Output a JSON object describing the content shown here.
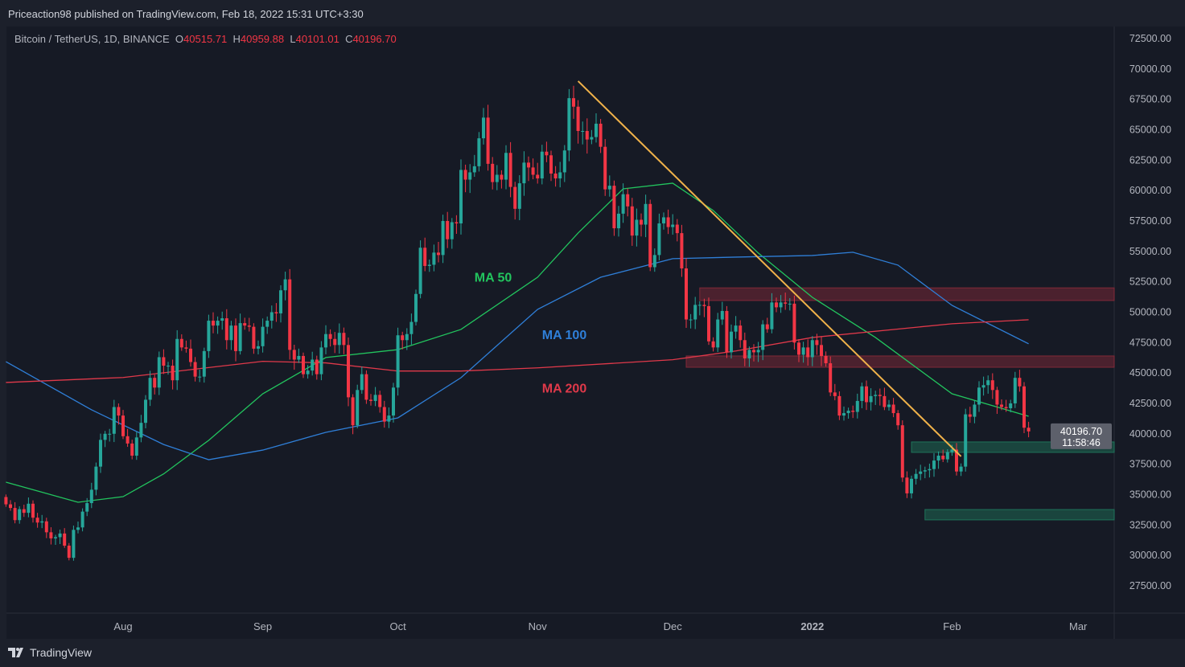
{
  "header": {
    "published": "Priceaction98 published on TradingView.com, Feb 18, 2022 15:31 UTC+3:30"
  },
  "legend": {
    "symbol": "Bitcoin / TetherUS, 1D, BINANCE",
    "o_label": "O",
    "o": "40515.71",
    "h_label": "H",
    "h": "40959.88",
    "l_label": "L",
    "l": "40101.01",
    "c_label": "C",
    "c": "40196.70"
  },
  "price_label": {
    "price": "40196.70",
    "countdown": "11:58:46"
  },
  "brand": {
    "name": "TradingView",
    "icon": "tradingview-logo-icon"
  },
  "colors": {
    "up": "#26a69a",
    "down": "#f23645",
    "ma50": "#22c55e",
    "ma100": "#2f7fd8",
    "ma200": "#e0394a",
    "trendline": "#f0b24a",
    "resistance": "#8b2a3a",
    "support": "#1f7a5e"
  },
  "chart_data": {
    "type": "candlestick",
    "yticks": [
      72500,
      70000,
      67500,
      65000,
      62500,
      60000,
      57500,
      55000,
      52500,
      50000,
      47500,
      45000,
      42500,
      40000,
      37500,
      35000,
      32500,
      30000,
      27500
    ],
    "ylim": [
      25000,
      73500
    ],
    "xticks": [
      {
        "label": "Aug",
        "date": "2021-08-01"
      },
      {
        "label": "Sep",
        "date": "2021-09-01"
      },
      {
        "label": "Oct",
        "date": "2021-10-01"
      },
      {
        "label": "Nov",
        "date": "2021-11-01"
      },
      {
        "label": "Dec",
        "date": "2021-12-01"
      },
      {
        "label": "2022",
        "date": "2022-01-01"
      },
      {
        "label": "Feb",
        "date": "2022-02-01"
      },
      {
        "label": "Mar",
        "date": "2022-03-01"
      }
    ],
    "start_date": "2021-07-06",
    "closes": [
      34200,
      33900,
      32900,
      33800,
      33500,
      34250,
      33100,
      32700,
      32800,
      31900,
      31400,
      31500,
      31800,
      30800,
      29800,
      32100,
      32300,
      33600,
      34300,
      35400,
      37300,
      39500,
      40000,
      40000,
      42200,
      41500,
      39800,
      39200,
      38200,
      39700,
      40900,
      42800,
      44600,
      43800,
      46300,
      45600,
      45600,
      44400,
      47800,
      47100,
      47000,
      45900,
      44700,
      44700,
      46800,
      49300,
      48900,
      49300,
      49500,
      47700,
      48900,
      46800,
      49100,
      48900,
      48800,
      47000,
      47200,
      48800,
      49300,
      50000,
      49900,
      51800,
      52700,
      46900,
      46100,
      46400,
      44900,
      45200,
      46100,
      44900,
      47100,
      48200,
      47800,
      47300,
      48300,
      47300,
      43000,
      40700,
      43600,
      44900,
      42800,
      42700,
      43200,
      42200,
      41000,
      41500,
      43800,
      48100,
      47700,
      48200,
      49200,
      51500,
      55300,
      53800,
      53900,
      54900,
      54700,
      57500,
      56000,
      57400,
      57300,
      61700,
      60900,
      61500,
      62000,
      64300,
      66000,
      62200,
      60700,
      61300,
      60900,
      63100,
      60300,
      58500,
      60600,
      62300,
      61900,
      61300,
      61000,
      63200,
      62900,
      61400,
      61000,
      61500,
      63300,
      67600,
      66900,
      64900,
      64900,
      64200,
      64400,
      65500,
      63600,
      60100,
      60400,
      56900,
      58100,
      59700,
      58700,
      56300,
      57600,
      57200,
      58900,
      53700,
      54700,
      57300,
      57800,
      57000,
      57200,
      56500,
      53600,
      49400,
      49400,
      50600,
      50600,
      50500,
      47600,
      47100,
      49400,
      50100,
      46700,
      48400,
      48900,
      47700,
      46200,
      46900,
      46700,
      46900,
      49000,
      48600,
      50800,
      50400,
      50800,
      50700,
      50700,
      47500,
      46500,
      47100,
      46300,
      47700,
      47300,
      46400,
      45800,
      43400,
      43100,
      41500,
      41700,
      41900,
      41800,
      42700,
      43900,
      42600,
      43100,
      43200,
      43100,
      42200,
      42400,
      41700,
      40700,
      36400,
      35100,
      36300,
      36700,
      36900,
      37000,
      37100,
      37800,
      38200,
      37900,
      38500,
      38700,
      36900,
      37300,
      41600,
      41400,
      42400,
      43800,
      44000,
      44400,
      43600,
      42400,
      42200,
      42100,
      42500,
      44600,
      43900,
      40500,
      40196.7
    ],
    "series": [
      {
        "name": "MA 50",
        "points": [
          [
            "2021-07-06",
            36020
          ],
          [
            "2021-07-22",
            34370
          ],
          [
            "2021-08-01",
            34830
          ],
          [
            "2021-08-10",
            36700
          ],
          [
            "2021-08-20",
            39460
          ],
          [
            "2021-09-01",
            43290
          ],
          [
            "2021-09-15",
            46270
          ],
          [
            "2021-10-01",
            46920
          ],
          [
            "2021-10-15",
            48580
          ],
          [
            "2021-11-01",
            52870
          ],
          [
            "2021-11-10",
            56510
          ],
          [
            "2021-11-20",
            60140
          ],
          [
            "2021-12-01",
            60610
          ],
          [
            "2021-12-10",
            58360
          ],
          [
            "2021-12-20",
            54860
          ],
          [
            "2022-01-01",
            51220
          ],
          [
            "2022-01-15",
            47920
          ],
          [
            "2022-02-01",
            43290
          ],
          [
            "2022-02-18",
            41440
          ]
        ]
      },
      {
        "name": "MA 100",
        "points": [
          [
            "2021-07-06",
            45930
          ],
          [
            "2021-07-25",
            41970
          ],
          [
            "2021-08-10",
            39120
          ],
          [
            "2021-08-20",
            37870
          ],
          [
            "2021-09-01",
            38660
          ],
          [
            "2021-09-15",
            40120
          ],
          [
            "2021-10-01",
            41310
          ],
          [
            "2021-10-15",
            44610
          ],
          [
            "2021-11-01",
            50230
          ],
          [
            "2021-11-15",
            52870
          ],
          [
            "2021-12-01",
            54400
          ],
          [
            "2021-12-15",
            54530
          ],
          [
            "2022-01-01",
            54660
          ],
          [
            "2022-01-10",
            54930
          ],
          [
            "2022-01-20",
            53870
          ],
          [
            "2022-02-01",
            50560
          ],
          [
            "2022-02-18",
            47400
          ]
        ]
      },
      {
        "name": "MA 200",
        "points": [
          [
            "2021-07-06",
            44220
          ],
          [
            "2021-08-01",
            44630
          ],
          [
            "2021-09-01",
            45960
          ],
          [
            "2021-09-15",
            45830
          ],
          [
            "2021-10-01",
            45160
          ],
          [
            "2021-10-15",
            45160
          ],
          [
            "2021-11-01",
            45420
          ],
          [
            "2021-12-01",
            46090
          ],
          [
            "2021-12-15",
            46810
          ],
          [
            "2022-01-01",
            47920
          ],
          [
            "2022-02-01",
            49050
          ],
          [
            "2022-02-18",
            49380
          ]
        ]
      }
    ],
    "labels": [
      {
        "text": "MA 50",
        "date": "2021-10-18",
        "price": 52500,
        "key": "ma50"
      },
      {
        "text": "MA 100",
        "date": "2021-11-02",
        "price": 47800,
        "key": "ma100"
      },
      {
        "text": "MA 200",
        "date": "2021-11-02",
        "price": 43400,
        "key": "ma200"
      }
    ],
    "trendline": {
      "from": [
        "2021-11-10",
        69000
      ],
      "to": [
        "2022-02-03",
        38140
      ]
    },
    "zones": [
      {
        "kind": "resistance",
        "from": "2021-12-07",
        "top": 52000,
        "bottom": 50960
      },
      {
        "kind": "resistance",
        "from": "2021-12-04",
        "top": 46400,
        "bottom": 45470
      },
      {
        "kind": "support",
        "from": "2022-01-23",
        "top": 39330,
        "bottom": 38470
      },
      {
        "kind": "support",
        "from": "2022-01-26",
        "top": 33770,
        "bottom": 32920
      }
    ]
  }
}
